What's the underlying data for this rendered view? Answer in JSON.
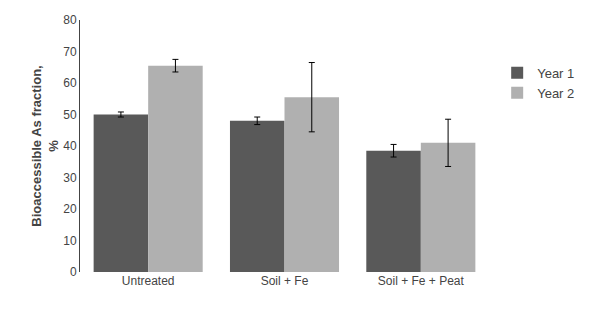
{
  "chart_data": {
    "type": "bar",
    "ylabel": "Bioaccessible As fraction,\n%",
    "categories": [
      "Untreated",
      "Soil + Fe",
      "Soil + Fe + Peat"
    ],
    "series": [
      {
        "name": "Year 1",
        "color": "#595959",
        "values": [
          50.0,
          48.0,
          38.5
        ],
        "errors": [
          0.8,
          1.2,
          2.0
        ]
      },
      {
        "name": "Year 2",
        "color": "#b0b0b0",
        "values": [
          65.5,
          55.5,
          41.0
        ],
        "errors": [
          2.0,
          11.0,
          7.5
        ]
      }
    ],
    "ylim": [
      0,
      80
    ],
    "yticks": [
      0,
      10,
      20,
      30,
      40,
      50,
      60,
      70,
      80
    ],
    "grid": false,
    "legend": "right"
  }
}
